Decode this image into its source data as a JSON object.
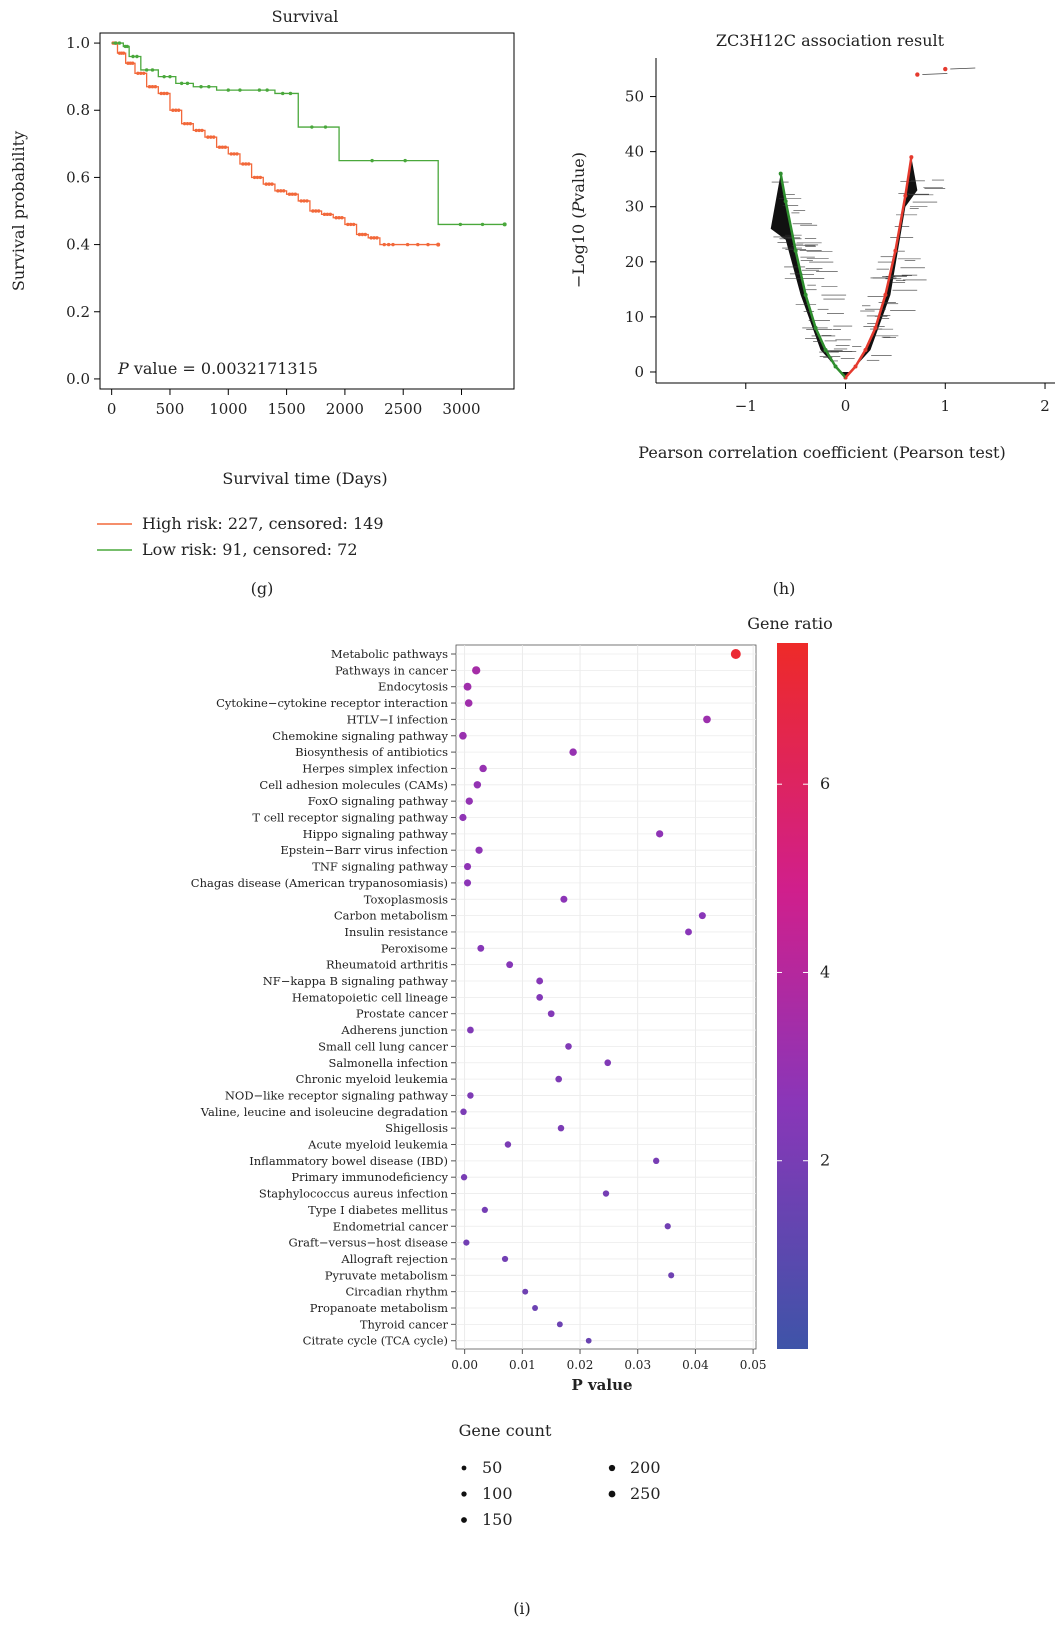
{
  "chart_data": [
    {
      "panel": "(g)",
      "type": "line",
      "title": "Survival",
      "xlabel": "Survival time (Days)",
      "ylabel": "Survival probability",
      "xlim": [
        -100,
        3450
      ],
      "ylim": [
        -0.03,
        1.03
      ],
      "xticks": [
        0,
        500,
        1000,
        1500,
        2000,
        2500,
        3000
      ],
      "yticks": [
        "0.0",
        "0.2",
        "0.4",
        "0.6",
        "0.8",
        "1.0"
      ],
      "annotation_p": "P",
      "annotation": " value = 0.0032171315",
      "legend": [
        "High risk: 227, censored: 149",
        "Low risk: 91, censored: 72"
      ],
      "colors": {
        "high": "#f2683a",
        "low": "#4aa83c"
      },
      "series": [
        {
          "name": "High risk: 227, censored: 149",
          "x": [
            0,
            50,
            120,
            200,
            300,
            400,
            500,
            600,
            700,
            800,
            900,
            1000,
            1100,
            1200,
            1300,
            1400,
            1500,
            1600,
            1700,
            1800,
            1900,
            2000,
            2100,
            2200,
            2300,
            2450,
            2800
          ],
          "y": [
            1.0,
            0.97,
            0.94,
            0.91,
            0.87,
            0.85,
            0.8,
            0.76,
            0.74,
            0.72,
            0.69,
            0.67,
            0.64,
            0.6,
            0.58,
            0.56,
            0.55,
            0.53,
            0.5,
            0.49,
            0.48,
            0.46,
            0.43,
            0.42,
            0.4,
            0.4,
            0.4
          ]
        },
        {
          "name": "Low risk: 91, censored: 72",
          "x": [
            0,
            100,
            150,
            250,
            400,
            550,
            700,
            900,
            1200,
            1400,
            1600,
            1950,
            2800,
            3370
          ],
          "y": [
            1.0,
            0.99,
            0.96,
            0.92,
            0.9,
            0.88,
            0.87,
            0.86,
            0.86,
            0.85,
            0.75,
            0.65,
            0.46,
            0.46
          ]
        }
      ]
    },
    {
      "panel": "(h)",
      "type": "scatter",
      "title": "ZC3H12C association result",
      "xlabel": "Pearson correlation coefficient (Pearson test)",
      "ylabel_prefix": "−Log10 (",
      "ylabel_italic": "P",
      "ylabel_suffix": "value)",
      "xlim": [
        -1.9,
        2.1
      ],
      "ylim": [
        -2,
        57
      ],
      "xticks": [
        "−1",
        "0",
        "1",
        "2"
      ],
      "yticks": [
        "0",
        "10",
        "20",
        "30",
        "40",
        "50"
      ],
      "colors": {
        "negative": "#2f8f2f",
        "positive": "#e53a2e",
        "bulk": "#111111"
      },
      "edge_negative": {
        "x": [
          -0.65,
          -0.6,
          -0.5,
          -0.4,
          -0.3,
          -0.2,
          -0.1,
          0.0
        ],
        "y": [
          36,
          31,
          22,
          14,
          8,
          4,
          1,
          -1
        ]
      },
      "edge_positive": {
        "x": [
          0.0,
          0.1,
          0.2,
          0.3,
          0.4,
          0.5,
          0.6,
          0.66
        ],
        "y": [
          -1,
          1,
          4,
          8,
          14,
          22,
          32,
          39
        ]
      },
      "outliers": {
        "x": [
          0.72,
          1.0
        ],
        "y": [
          54,
          55
        ]
      }
    },
    {
      "panel": "(i)",
      "type": "scatter",
      "xlabel": "P value",
      "xlim": [
        -0.0015,
        0.0505
      ],
      "xticks": [
        "0.00",
        "0.01",
        "0.02",
        "0.03",
        "0.04",
        "0.05"
      ],
      "colorbar_title": "Gene ratio",
      "colorbar_ticks": [
        "6",
        "4",
        "2"
      ],
      "colorbar_range": [
        0,
        7.5
      ],
      "size_legend_title": "Gene count",
      "size_legend": [
        "50",
        "100",
        "150",
        "200",
        "250"
      ],
      "categories": [
        "Metabolic pathways",
        "Pathways in cancer",
        "Endocytosis",
        "Cytokine−cytokine receptor interaction",
        "HTLV−I infection",
        "Chemokine signaling pathway",
        "Biosynthesis of antibiotics",
        "Herpes simplex infection",
        "Cell adhesion molecules (CAMs)",
        "FoxO signaling pathway",
        "T cell receptor signaling pathway",
        "Hippo signaling pathway",
        "Epstein−Barr virus infection",
        "TNF signaling pathway",
        "Chagas disease (American trypanosomiasis)",
        "Toxoplasmosis",
        "Carbon metabolism",
        "Insulin resistance",
        "Peroxisome",
        "Rheumatoid arthritis",
        "NF−kappa B signaling pathway",
        "Hematopoietic cell lineage",
        "Prostate cancer",
        "Adherens junction",
        "Small cell lung cancer",
        "Salmonella infection",
        "Chronic myeloid leukemia",
        "NOD−like receptor signaling pathway",
        "Valine, leucine and isoleucine degradation",
        "Shigellosis",
        "Acute myeloid leukemia",
        "Inflammatory bowel disease (IBD)",
        "Primary immunodeficiency",
        "Staphylococcus aureus infection",
        "Type I diabetes mellitus",
        "Endometrial cancer",
        "Graft−versus−host disease",
        "Allograft rejection",
        "Pyruvate metabolism",
        "Circadian rhythm",
        "Propanoate metabolism",
        "Thyroid cancer",
        "Citrate cycle (TCA cycle)"
      ],
      "p_values": [
        0.047,
        0.002,
        0.0005,
        0.0007,
        0.042,
        -0.0003,
        0.0188,
        0.0032,
        0.0022,
        0.0008,
        -0.0003,
        0.0338,
        0.0025,
        0.0005,
        0.0005,
        0.0172,
        0.0412,
        0.0388,
        0.0028,
        0.0078,
        0.013,
        0.013,
        0.015,
        0.001,
        0.018,
        0.0248,
        0.0163,
        0.001,
        -0.0002,
        0.0167,
        0.0075,
        0.0332,
        -0.0001,
        0.0245,
        0.0035,
        0.0352,
        0.0003,
        0.007,
        0.0358,
        0.0105,
        0.0122,
        0.0165,
        0.0215
      ],
      "gene_ratio": [
        7.2,
        3.5,
        3.3,
        3.3,
        3.2,
        3.1,
        3.0,
        3.0,
        2.9,
        2.9,
        2.8,
        2.8,
        2.8,
        2.8,
        2.7,
        2.7,
        2.6,
        2.6,
        2.5,
        2.5,
        2.5,
        2.4,
        2.4,
        2.3,
        2.3,
        2.3,
        2.2,
        2.2,
        2.1,
        2.1,
        2.1,
        2.0,
        2.0,
        1.9,
        1.9,
        1.8,
        1.8,
        1.8,
        1.7,
        1.7,
        1.6,
        1.6,
        1.5
      ],
      "gene_count": [
        260,
        160,
        140,
        130,
        130,
        130,
        120,
        120,
        120,
        115,
        110,
        110,
        110,
        105,
        105,
        100,
        100,
        95,
        95,
        95,
        95,
        90,
        90,
        90,
        85,
        85,
        85,
        80,
        80,
        80,
        80,
        75,
        75,
        75,
        70,
        70,
        70,
        70,
        65,
        60,
        60,
        60,
        55
      ]
    }
  ],
  "panel_labels": {
    "g": "(g)",
    "h": "(h)",
    "i": "(i)"
  }
}
